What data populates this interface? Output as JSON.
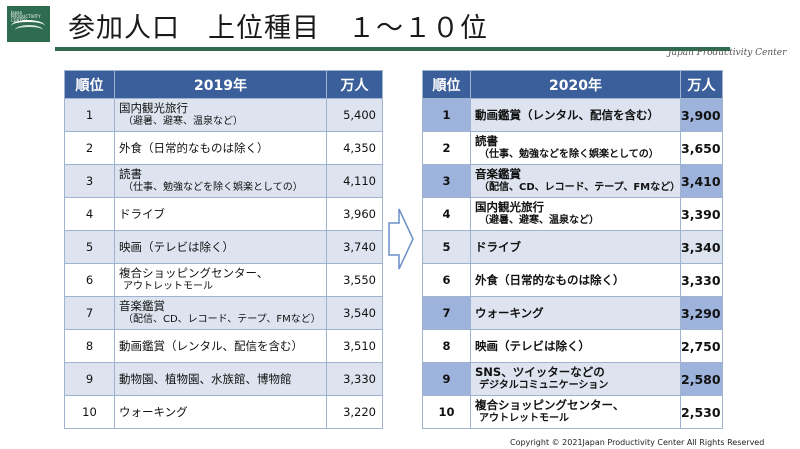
{
  "logo": {
    "text1": "Japan",
    "text2": "PRODUCTIVITY",
    "text3": "CENTER"
  },
  "header": {
    "title": "参加人口　上位種目　１～１０位",
    "org": "Japan Productivity Center"
  },
  "table2019": {
    "headers": [
      "順位",
      "2019年",
      "万人"
    ],
    "rows": [
      {
        "rank": "1",
        "name": "国内観光旅行",
        "sub": "（避暑、避寒、温泉など）",
        "value": "5,400"
      },
      {
        "rank": "2",
        "name": "外食（日常的なものは除く）",
        "sub": "",
        "value": "4,350"
      },
      {
        "rank": "3",
        "name": "読書",
        "sub": "（仕事、勉強などを除く娯楽としての）",
        "value": "4,110"
      },
      {
        "rank": "4",
        "name": "ドライブ",
        "sub": "",
        "value": "3,960"
      },
      {
        "rank": "5",
        "name": "映画（テレビは除く）",
        "sub": "",
        "value": "3,740"
      },
      {
        "rank": "6",
        "name": "複合ショッピングセンター、",
        "sub": "アウトレットモール",
        "value": "3,550"
      },
      {
        "rank": "7",
        "name": "音楽鑑賞",
        "sub": "（配信、CD、レコード、テープ、FMなど）",
        "value": "3,540"
      },
      {
        "rank": "8",
        "name": "動画鑑賞（レンタル、配信を含む）",
        "sub": "",
        "value": "3,510"
      },
      {
        "rank": "9",
        "name": "動物園、植物園、水族館、博物館",
        "sub": "",
        "value": "3,330"
      },
      {
        "rank": "10",
        "name": "ウォーキング",
        "sub": "",
        "value": "3,220"
      }
    ]
  },
  "table2020": {
    "headers": [
      "順位",
      "2020年",
      "万人"
    ],
    "rows": [
      {
        "rank": "1",
        "name": "動画鑑賞（レンタル、配信を含む）",
        "sub": "",
        "value": "3,900",
        "highlight": true
      },
      {
        "rank": "2",
        "name": "読書",
        "sub": "（仕事、勉強などを除く娯楽としての）",
        "value": "3,650",
        "highlight": false
      },
      {
        "rank": "3",
        "name": "音楽鑑賞",
        "sub": "（配信、CD、レコード、テープ、FMなど）",
        "value": "3,410",
        "highlight": true
      },
      {
        "rank": "4",
        "name": "国内観光旅行",
        "sub": "（避暑、避寒、温泉など）",
        "value": "3,390",
        "highlight": false
      },
      {
        "rank": "5",
        "name": "ドライブ",
        "sub": "",
        "value": "3,340",
        "highlight": false
      },
      {
        "rank": "6",
        "name": "外食（日常的なものは除く）",
        "sub": "",
        "value": "3,330",
        "highlight": false
      },
      {
        "rank": "7",
        "name": "ウォーキング",
        "sub": "",
        "value": "3,290",
        "highlight": true
      },
      {
        "rank": "8",
        "name": "映画（テレビは除く）",
        "sub": "",
        "value": "2,750",
        "highlight": false
      },
      {
        "rank": "9",
        "name": "SNS、ツイッターなどの",
        "sub": "デジタルコミュニケーション",
        "value": "2,580",
        "highlight": true
      },
      {
        "rank": "10",
        "name": "複合ショッピングセンター、",
        "sub": "アウトレットモール",
        "value": "2,530",
        "highlight": false
      }
    ]
  },
  "footer": {
    "copyright": "Copyright © 2021Japan Productivity Center All Rights Reserved"
  },
  "colors": {
    "brand": "#2e6b4f",
    "header_bg": "#3b5f9a",
    "row_tint": "#dde4ef",
    "highlight": "#9db3dc"
  }
}
